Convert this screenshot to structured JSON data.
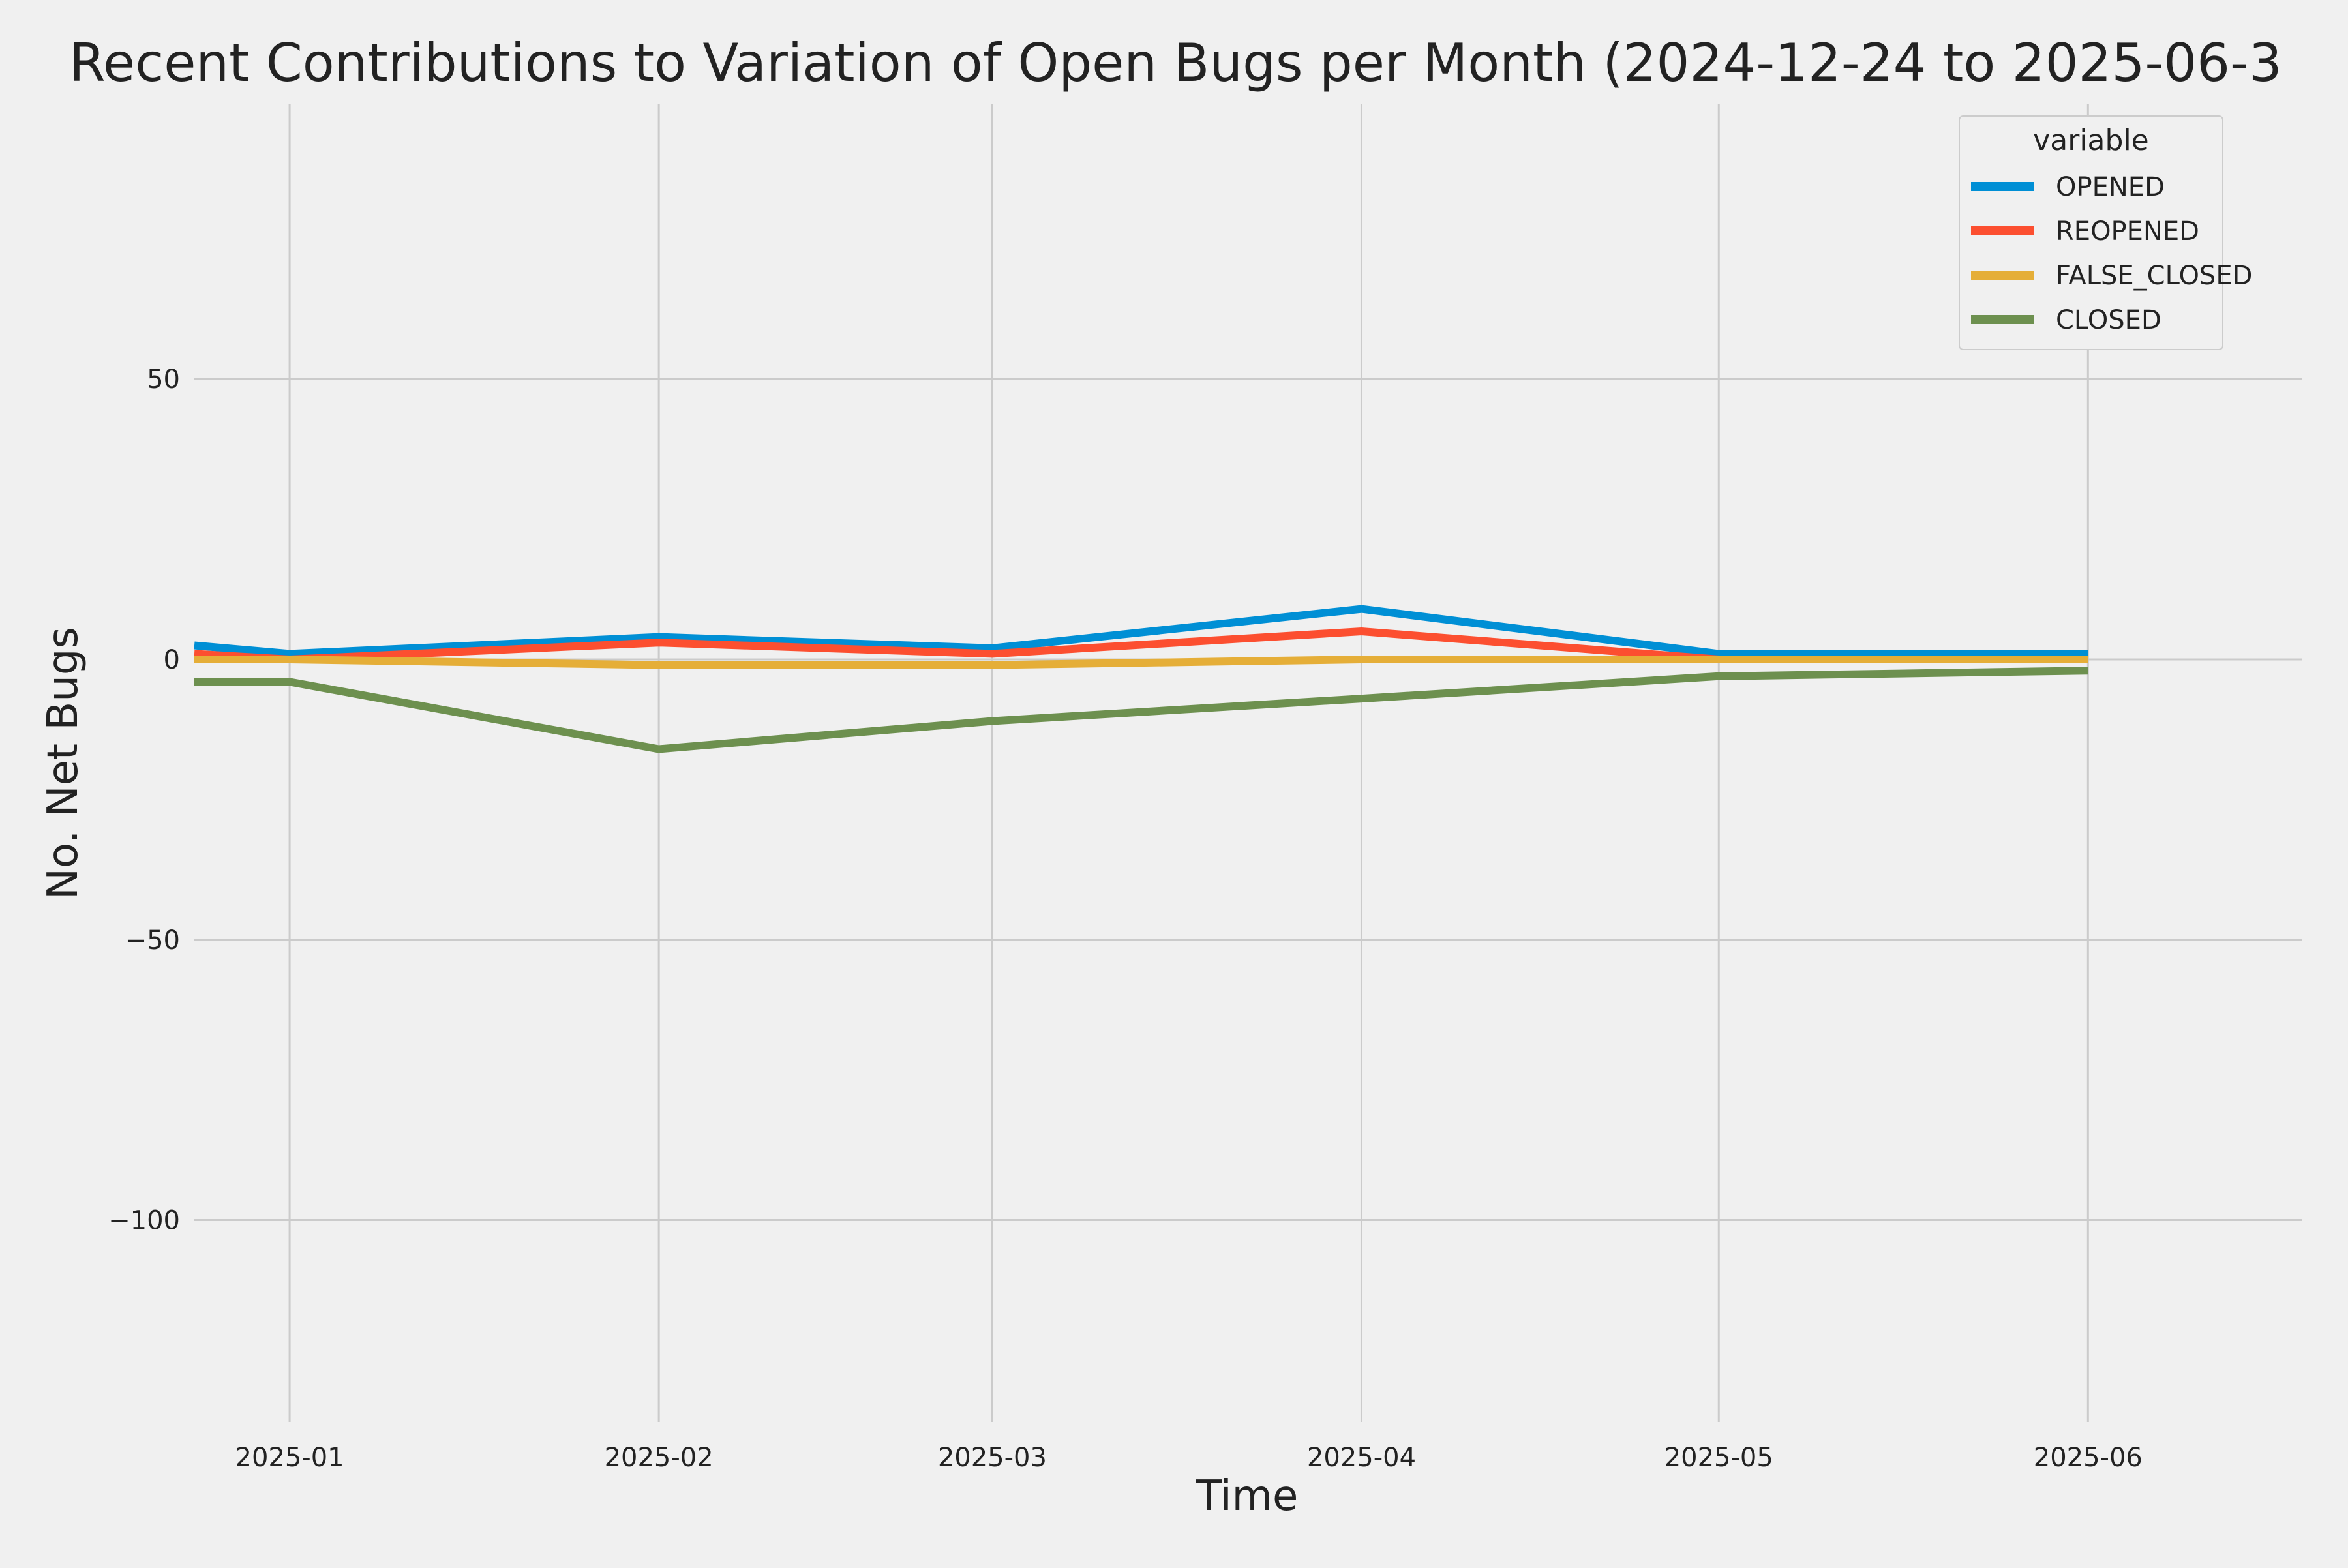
{
  "chart_data": {
    "type": "line",
    "title": "Recent Contributions to Variation of Open Bugs per Month (2024-12-24 to 2025-06-3",
    "xlabel": "Time",
    "ylabel": "No. Net Bugs",
    "x": [
      "2024-12-24",
      "2025-01-01",
      "2025-02-01",
      "2025-03-01",
      "2025-04-01",
      "2025-05-01",
      "2025-06-01"
    ],
    "x_ticks": [
      {
        "date": "2025-01-01",
        "label": "2025-01"
      },
      {
        "date": "2025-02-01",
        "label": "2025-02"
      },
      {
        "date": "2025-03-01",
        "label": "2025-03"
      },
      {
        "date": "2025-04-01",
        "label": "2025-04"
      },
      {
        "date": "2025-05-01",
        "label": "2025-05"
      },
      {
        "date": "2025-06-01",
        "label": "2025-06"
      }
    ],
    "xlim": [
      "2024-12-24",
      "2025-06-19"
    ],
    "y_ticks": [
      {
        "value": 50,
        "label": "50"
      },
      {
        "value": 0,
        "label": "0"
      },
      {
        "value": -50,
        "label": "−50"
      },
      {
        "value": -100,
        "label": "−100"
      }
    ],
    "ylim": [
      -136,
      99
    ],
    "grid": true,
    "legend": {
      "title": "variable",
      "position": "top-right"
    },
    "series": [
      {
        "name": "OPENED",
        "color": "#008fd5",
        "values": [
          2.5,
          1,
          4,
          2,
          9,
          1,
          1
        ]
      },
      {
        "name": "REOPENED",
        "color": "#fc4f30",
        "values": [
          1,
          0,
          3,
          1,
          5,
          0,
          0
        ]
      },
      {
        "name": "FALSE_CLOSED",
        "color": "#e5ae38",
        "values": [
          0,
          0,
          -1,
          -1,
          0,
          0,
          0
        ]
      },
      {
        "name": "CLOSED",
        "color": "#6d904f",
        "values": [
          -4,
          -4,
          -16,
          -11,
          -7,
          -3,
          -2
        ]
      }
    ]
  }
}
